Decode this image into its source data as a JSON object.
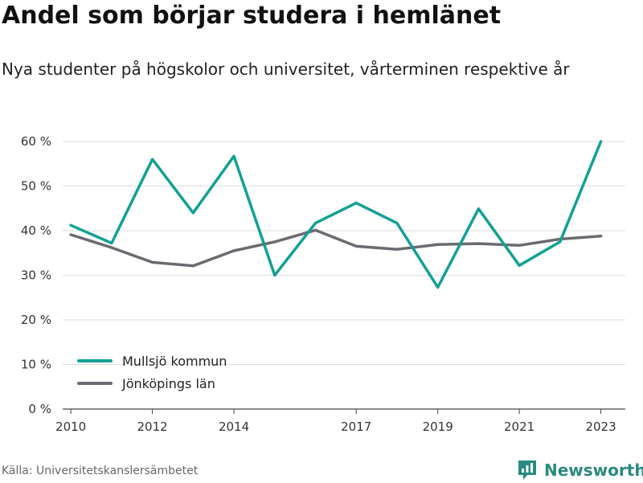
{
  "title": "Andel som börjar studera i hemlänet",
  "subtitle": "Nya studenter på högskolor och universitet, vårterminen respektive år",
  "source": "Källa: Universitetskanslersämbetet",
  "brand": {
    "name": "Newsworthy",
    "icon": "newsworthy-logo-icon",
    "color": "#2a8a7f"
  },
  "chart_data": {
    "type": "line",
    "title": "Andel som börjar studera i hemlänet",
    "subtitle": "Nya studenter på högskolor och universitet, vårterminen respektive år",
    "xlabel": "",
    "ylabel": "",
    "x": [
      2010,
      2011,
      2012,
      2013,
      2014,
      2015,
      2016,
      2017,
      2018,
      2019,
      2020,
      2021,
      2022,
      2023
    ],
    "x_ticks": [
      "2010",
      "2012",
      "2014",
      "2017",
      "2019",
      "2021",
      "2023"
    ],
    "x_range": [
      2009.8,
      2023.6
    ],
    "ylim": [
      0,
      60
    ],
    "y_ticks": [
      0,
      10,
      20,
      30,
      40,
      50,
      60
    ],
    "y_tick_labels": [
      "0 %",
      "10 %",
      "20 %",
      "30 %",
      "40 %",
      "50 %",
      "60 %"
    ],
    "grid": true,
    "legend_position": "bottom-left",
    "series": [
      {
        "name": "Mullsjö kommun",
        "color": "#13a094",
        "values": [
          41.2,
          37.2,
          56.0,
          44.0,
          56.7,
          30.0,
          41.7,
          46.2,
          41.7,
          27.3,
          44.9,
          32.2,
          37.5,
          60.0
        ]
      },
      {
        "name": "Jönköpings län",
        "color": "#6c6a70",
        "values": [
          39.1,
          36.2,
          32.9,
          32.1,
          35.5,
          37.5,
          40.1,
          36.5,
          35.8,
          36.9,
          37.1,
          36.7,
          38.1,
          38.8
        ]
      }
    ]
  }
}
